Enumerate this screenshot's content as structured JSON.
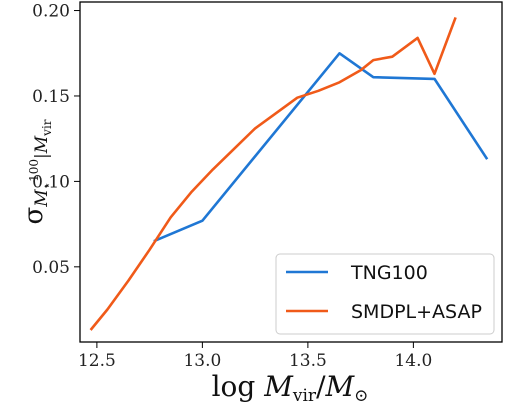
{
  "chart_data": {
    "type": "line",
    "xlabel": "log M_vir/M_⊙",
    "ylabel": "σ M⋆100|Mvir",
    "xlim": [
      12.42,
      14.42
    ],
    "ylim": [
      0.006,
      0.205
    ],
    "xticks": [
      {
        "value": 12.5,
        "label": "12.5"
      },
      {
        "value": 13.0,
        "label": "13.0"
      },
      {
        "value": 13.5,
        "label": "13.5"
      },
      {
        "value": 14.0,
        "label": "14.0"
      }
    ],
    "yticks": [
      {
        "value": 0.05,
        "label": "0.05"
      },
      {
        "value": 0.1,
        "label": "0.10"
      },
      {
        "value": 0.15,
        "label": "0.15"
      },
      {
        "value": 0.2,
        "label": "0.20"
      }
    ],
    "grid": false,
    "legend_position": "lower-right",
    "series": [
      {
        "name": "TNG100",
        "color": "#1f77d4",
        "x": [
          12.77,
          13.0,
          13.65,
          13.81,
          14.1,
          14.35
        ],
        "y": [
          0.065,
          0.077,
          0.175,
          0.161,
          0.16,
          0.113
        ]
      },
      {
        "name": "SMDPL+ASAP",
        "color": "#f05a19",
        "x": [
          12.47,
          12.55,
          12.65,
          12.75,
          12.85,
          12.95,
          13.05,
          13.15,
          13.25,
          13.35,
          13.45,
          13.55,
          13.65,
          13.75,
          13.81,
          13.9,
          14.02,
          14.1,
          14.2
        ],
        "y": [
          0.013,
          0.025,
          0.042,
          0.06,
          0.079,
          0.094,
          0.107,
          0.119,
          0.131,
          0.14,
          0.149,
          0.153,
          0.158,
          0.165,
          0.171,
          0.173,
          0.184,
          0.163,
          0.196
        ]
      }
    ]
  }
}
